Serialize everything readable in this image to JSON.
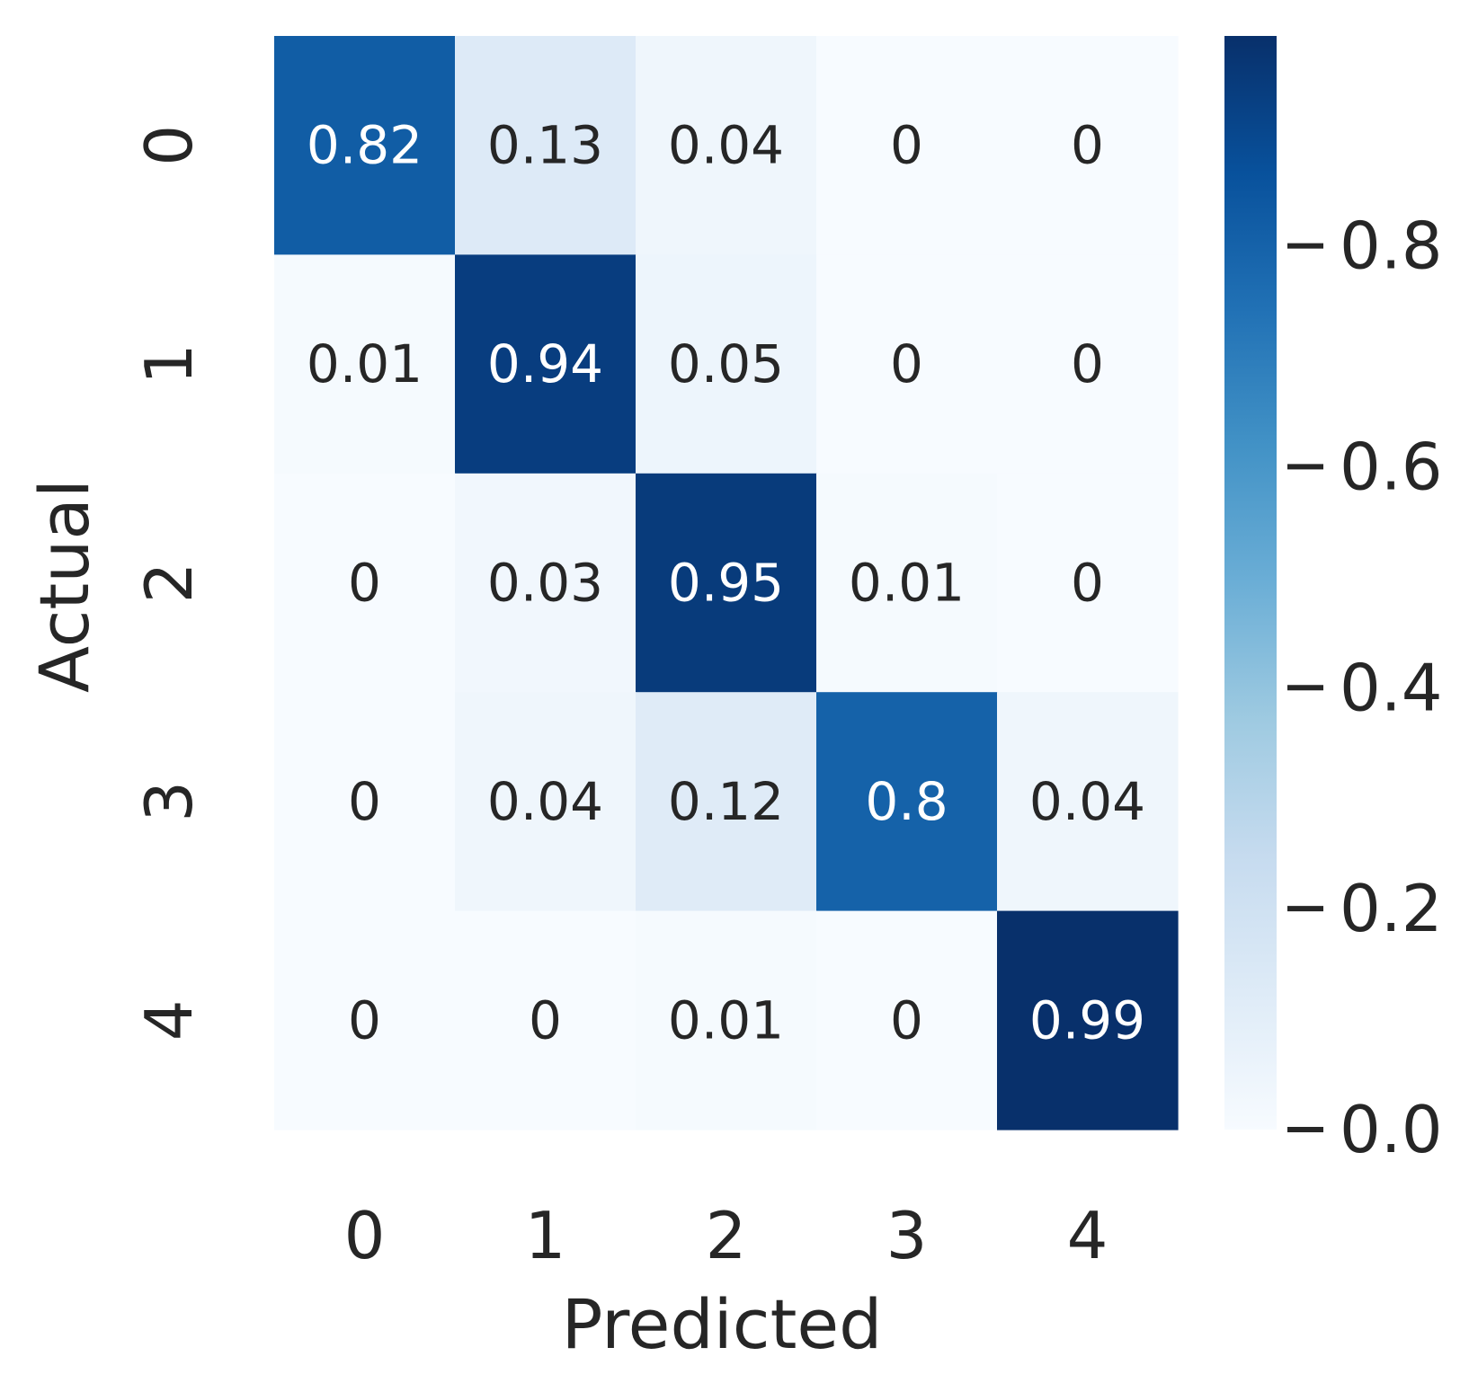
{
  "chart_data": {
    "type": "heatmap",
    "title": "",
    "xlabel": "Predicted",
    "ylabel": "Actual",
    "x_categories": [
      "0",
      "1",
      "2",
      "3",
      "4"
    ],
    "y_categories": [
      "0",
      "1",
      "2",
      "3",
      "4"
    ],
    "values": [
      [
        0.82,
        0.13,
        0.04,
        0,
        0
      ],
      [
        0.01,
        0.94,
        0.05,
        0,
        0
      ],
      [
        0,
        0.03,
        0.95,
        0.01,
        0
      ],
      [
        0,
        0.04,
        0.12,
        0.8,
        0.04
      ],
      [
        0,
        0,
        0.01,
        0,
        0.99
      ]
    ],
    "value_labels": [
      [
        "0.82",
        "0.13",
        "0.04",
        "0",
        "0"
      ],
      [
        "0.01",
        "0.94",
        "0.05",
        "0",
        "0"
      ],
      [
        "0",
        "0.03",
        "0.95",
        "0.01",
        "0"
      ],
      [
        "0",
        "0.04",
        "0.12",
        "0.8",
        "0.04"
      ],
      [
        "0",
        "0",
        "0.01",
        "0",
        "0.99"
      ]
    ],
    "colormap": "Blues",
    "colorbar": {
      "range": [
        0,
        0.99
      ],
      "ticks": [
        0.0,
        0.2,
        0.4,
        0.6,
        0.8
      ],
      "tick_labels": [
        "0.0",
        "0.2",
        "0.4",
        "0.6",
        "0.8"
      ]
    }
  }
}
